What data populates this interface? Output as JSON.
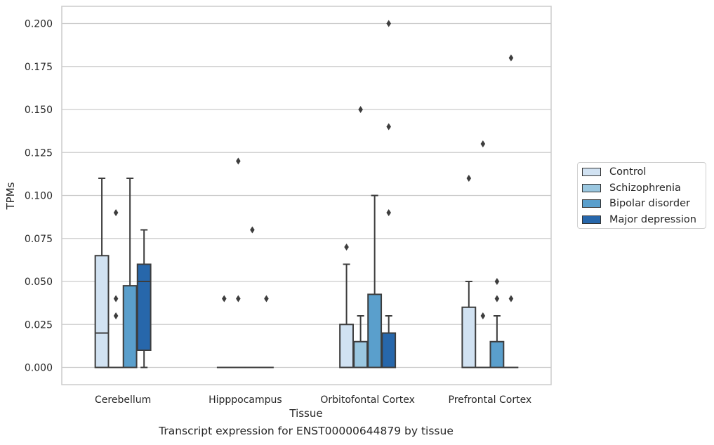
{
  "caption": "Transcript expression for ENST00000644879 by tissue",
  "legend": {
    "items": [
      {
        "label": "Control",
        "color": "#d1e2f2"
      },
      {
        "label": "Schizophrenia",
        "color": "#9ac7e0"
      },
      {
        "label": "Bipolar disorder",
        "color": "#5a9fcc"
      },
      {
        "label": "Major depression",
        "color": "#2767ab"
      }
    ]
  },
  "chart_data": {
    "type": "box",
    "title": "",
    "xlabel": "Tissue",
    "ylabel": "TPMs",
    "ylim": [
      -0.01,
      0.21
    ],
    "yticks": [
      0.0,
      0.025,
      0.05,
      0.075,
      0.1,
      0.125,
      0.15,
      0.175,
      0.2
    ],
    "ytick_labels": [
      "0.000",
      "0.025",
      "0.050",
      "0.075",
      "0.100",
      "0.125",
      "0.150",
      "0.175",
      "0.200"
    ],
    "grid": "horizontal",
    "legend_position": "right",
    "categories": [
      "Cerebellum",
      "Hipppocampus",
      "Orbitofontal Cortex",
      "Prefrontal Cortex"
    ],
    "series": [
      {
        "name": "Control",
        "color": "#d1e2f2",
        "boxes": [
          {
            "q1": 0.0,
            "median": 0.02,
            "q3": 0.065,
            "whislo": 0.0,
            "whishi": 0.11,
            "fliers": []
          },
          {
            "q1": 0.0,
            "median": 0.0,
            "q3": 0.0,
            "whislo": 0.0,
            "whishi": 0.0,
            "fliers": [
              0.04
            ]
          },
          {
            "q1": 0.0,
            "median": 0.0,
            "q3": 0.025,
            "whislo": 0.0,
            "whishi": 0.06,
            "fliers": [
              0.07
            ]
          },
          {
            "q1": 0.0,
            "median": 0.0,
            "q3": 0.035,
            "whislo": 0.0,
            "whishi": 0.05,
            "fliers": [
              0.11
            ]
          }
        ]
      },
      {
        "name": "Schizophrenia",
        "color": "#9ac7e0",
        "boxes": [
          {
            "q1": 0.0,
            "median": 0.0,
            "q3": 0.0,
            "whislo": 0.0,
            "whishi": 0.0,
            "fliers": [
              0.09
            ]
          },
          {
            "q1": 0.0,
            "median": 0.0,
            "q3": 0.0,
            "whislo": 0.0,
            "whishi": 0.0,
            "fliers": [
              0.04,
              0.12
            ]
          },
          {
            "q1": 0.0,
            "median": 0.0,
            "q3": 0.015,
            "whislo": 0.0,
            "whishi": 0.03,
            "fliers": [
              0.15
            ]
          },
          {
            "q1": 0.0,
            "median": 0.0,
            "q3": 0.0,
            "whislo": 0.0,
            "whishi": 0.0,
            "fliers": [
              0.03,
              0.13
            ]
          }
        ]
      },
      {
        "name": "Bipolar disorder",
        "color": "#5a9fcc",
        "boxes": [
          {
            "q1": 0.0,
            "median": 0.0,
            "q3": 0.0475,
            "whislo": 0.0,
            "whishi": 0.11,
            "fliers": []
          },
          {
            "q1": 0.0,
            "median": 0.0,
            "q3": 0.0,
            "whislo": 0.0,
            "whishi": 0.0,
            "fliers": [
              0.08
            ]
          },
          {
            "q1": 0.0,
            "median": 0.0,
            "q3": 0.0425,
            "whislo": 0.0,
            "whishi": 0.1,
            "fliers": []
          },
          {
            "q1": 0.0,
            "median": 0.0,
            "q3": 0.015,
            "whislo": 0.0,
            "whishi": 0.03,
            "fliers": [
              0.04,
              0.05
            ]
          }
        ]
      },
      {
        "name": "Major depression",
        "color": "#2767ab",
        "boxes": [
          {
            "q1": 0.01,
            "median": 0.05,
            "q3": 0.06,
            "whislo": 0.0,
            "whishi": 0.08,
            "fliers": []
          },
          {
            "q1": 0.0,
            "median": 0.0,
            "q3": 0.0,
            "whislo": 0.0,
            "whishi": 0.0,
            "fliers": [
              0.04
            ]
          },
          {
            "q1": 0.0,
            "median": 0.0,
            "q3": 0.02,
            "whislo": 0.0,
            "whishi": 0.03,
            "fliers": [
              0.09,
              0.14,
              0.2
            ]
          },
          {
            "q1": 0.0,
            "median": 0.0,
            "q3": 0.0,
            "whislo": 0.0,
            "whishi": 0.0,
            "fliers": [
              0.04,
              0.18
            ]
          }
        ]
      }
    ],
    "extra_fliers": [
      {
        "category": "Cerebellum",
        "series": "Schizophrenia",
        "values": [
          0.03,
          0.04
        ]
      }
    ]
  }
}
